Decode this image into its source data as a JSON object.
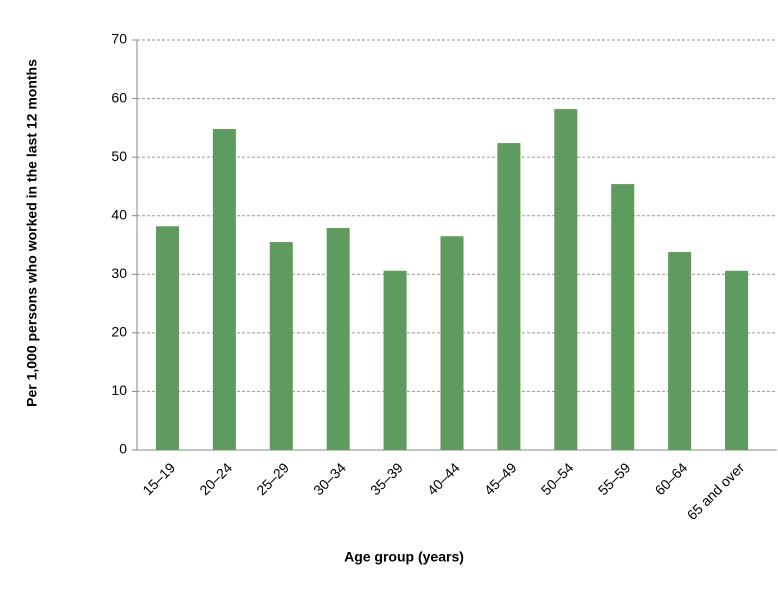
{
  "chart_data": {
    "type": "bar",
    "x_label": "Age group (years)",
    "y_label": "Per 1,000 persons who worked in the last 12 months",
    "categories": [
      "15–19",
      "20–24",
      "25–29",
      "30–34",
      "35–39",
      "40–44",
      "45–49",
      "50–54",
      "55–59",
      "60–64",
      "65 and over"
    ],
    "values": [
      38.2,
      54.8,
      35.5,
      37.9,
      30.6,
      36.5,
      52.4,
      58.2,
      45.4,
      33.8,
      30.6
    ],
    "color": "#5f9a5f",
    "ylim": [
      0,
      70
    ],
    "yticks": [
      0,
      10,
      20,
      30,
      40,
      50,
      60,
      70
    ],
    "grid": true
  }
}
